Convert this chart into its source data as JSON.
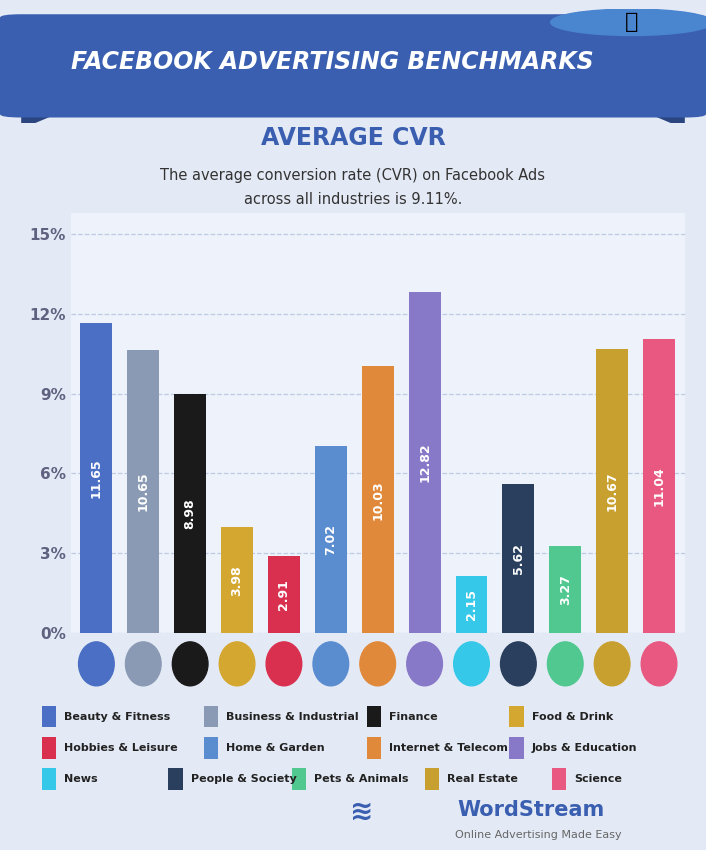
{
  "categories": [
    "Beauty",
    "Business",
    "Finance",
    "Food",
    "Hobbies",
    "Home",
    "Internet",
    "Jobs",
    "News",
    "People",
    "Pets",
    "RealEstate",
    "Science"
  ],
  "values": [
    11.65,
    10.65,
    8.98,
    3.98,
    2.91,
    7.02,
    10.03,
    12.82,
    2.15,
    5.62,
    3.27,
    10.67,
    11.04
  ],
  "bar_colors": [
    "#4a6fc4",
    "#8a9ab5",
    "#1a1a1a",
    "#d4a830",
    "#d93050",
    "#5a8cd0",
    "#e0893a",
    "#8878c8",
    "#35c8e8",
    "#2a3f5e",
    "#50c890",
    "#c8a030",
    "#e85880"
  ],
  "legend_labels": [
    "Beauty & Fitness",
    "Business & Industrial",
    "Finance",
    "Food & Drink",
    "Hobbies & Leisure",
    "Home & Garden",
    "Internet & Telecom",
    "Jobs & Education",
    "News",
    "People & Society",
    "Pets & Animals",
    "Real Estate",
    "Science"
  ],
  "legend_colors": [
    "#4a6fc4",
    "#8a9ab5",
    "#1a1a1a",
    "#d4a830",
    "#d93050",
    "#5a8cd0",
    "#e0893a",
    "#8878c8",
    "#35c8e8",
    "#2a3f5e",
    "#50c890",
    "#c8a030",
    "#e85880"
  ],
  "title_banner": "FACEBOOK ADVERTISING BENCHMARKS",
  "subtitle": "AVERAGE CVR",
  "ytick_labels": [
    "0%",
    "3%",
    "6%",
    "9%",
    "12%",
    "15%"
  ],
  "yticks": [
    0,
    3,
    6,
    9,
    12,
    15
  ],
  "ylim": [
    0,
    15.8
  ],
  "background_color": "#e4eaf5",
  "plot_bg_color": "#eef2fa",
  "grid_color": "#b8c8e0",
  "wordstream_text": "WordStream",
  "wordstream_sub": "Online Advertising Made Easy",
  "banner_color": "#3a5fb0",
  "banner_dark": "#2a4580",
  "thumb_color": "#4a85d0",
  "subtitle_color": "#3a5fb0"
}
